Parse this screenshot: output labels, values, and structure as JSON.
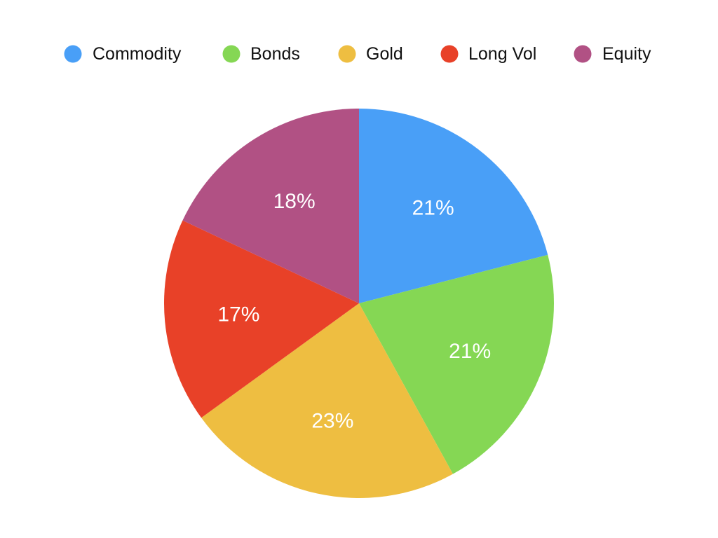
{
  "chart_data": {
    "type": "pie",
    "title": "",
    "legend_position": "top",
    "start": "top",
    "direction": "clockwise",
    "slices": [
      {
        "label": "Commodity",
        "value": 21,
        "value_label": "21%",
        "color": "#499ff7"
      },
      {
        "label": "Bonds",
        "value": 21,
        "value_label": "21%",
        "color": "#85d754"
      },
      {
        "label": "Gold",
        "value": 23,
        "value_label": "23%",
        "color": "#eebe41"
      },
      {
        "label": "Long Vol",
        "value": 17,
        "value_label": "17%",
        "color": "#e84128"
      },
      {
        "label": "Equity",
        "value": 18,
        "value_label": "18%",
        "color": "#b15184"
      }
    ]
  }
}
